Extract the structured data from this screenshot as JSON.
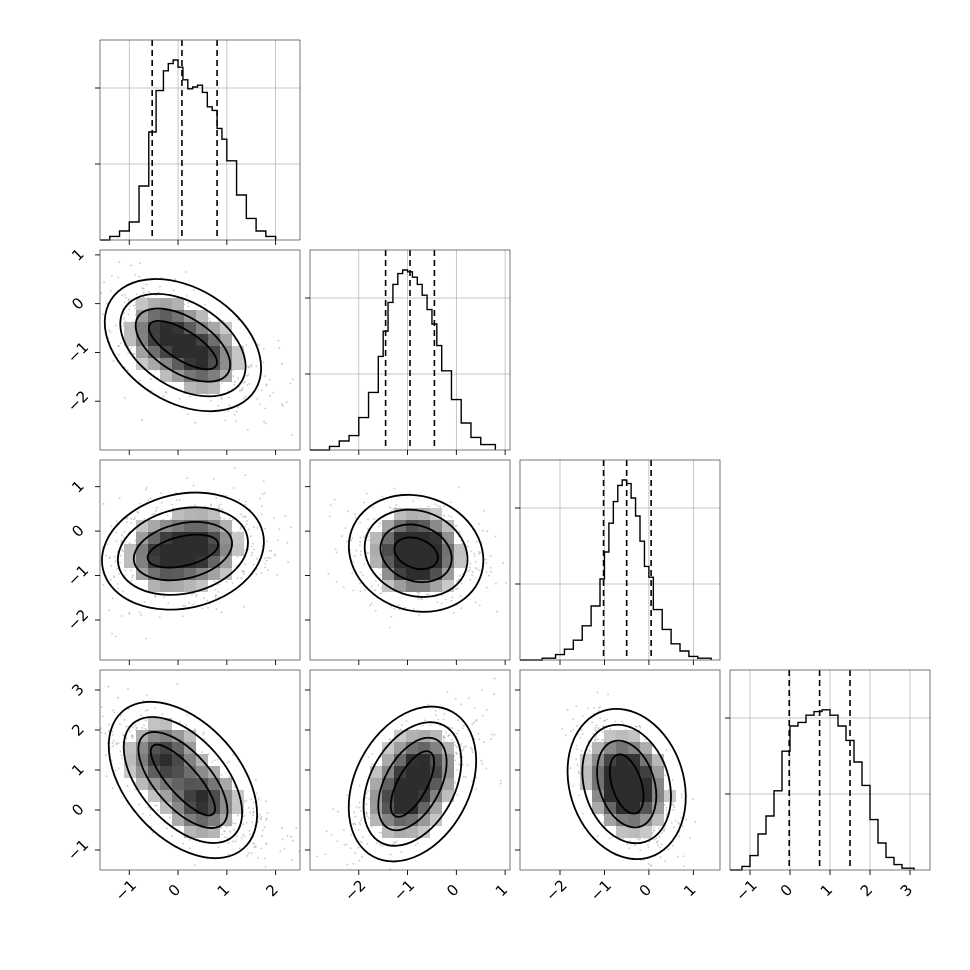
{
  "chart_data": {
    "type": "corner",
    "parameters": 4,
    "axis_ranges": [
      [
        -1.6,
        2.5
      ],
      [
        -3.0,
        1.1
      ],
      [
        -2.9,
        1.6
      ],
      [
        -1.5,
        3.5
      ]
    ],
    "ticks": [
      [
        -1,
        0,
        1,
        2
      ],
      [
        -2,
        -1,
        0,
        1
      ],
      [
        -2,
        -1,
        0,
        1
      ],
      [
        -1,
        0,
        1,
        2,
        3
      ]
    ],
    "tick_labels": {
      "x": [
        [
          "−1",
          "0",
          "1",
          "2"
        ],
        [
          "−2",
          "−1",
          "0",
          "1"
        ],
        [
          "−2",
          "−1",
          "0",
          "1"
        ],
        [
          "−1",
          "0",
          "1",
          "2",
          "3"
        ]
      ],
      "y": [
        null,
        [
          "−2",
          "−1",
          "0",
          "1"
        ],
        [
          "−2",
          "−1",
          "0",
          "1"
        ],
        [
          "−1",
          "0",
          "1",
          "2",
          "3"
        ]
      ]
    },
    "quantiles": [
      [
        -0.53,
        0.08,
        0.8
      ],
      [
        -1.45,
        -0.95,
        -0.45
      ],
      [
        -1.02,
        -0.5,
        0.05
      ],
      [
        -0.02,
        0.74,
        1.5
      ]
    ],
    "histograms": [
      {
        "x": [
          -1.6,
          -1.4,
          -1.2,
          -1.0,
          -0.8,
          -0.6,
          -0.45,
          -0.3,
          -0.2,
          -0.1,
          0.0,
          0.1,
          0.2,
          0.3,
          0.4,
          0.5,
          0.6,
          0.7,
          0.8,
          0.9,
          1.0,
          1.2,
          1.4,
          1.6,
          1.8,
          2.0
        ],
        "y": [
          0.0,
          0.02,
          0.05,
          0.1,
          0.3,
          0.6,
          0.83,
          0.94,
          0.98,
          1.0,
          0.96,
          0.89,
          0.84,
          0.85,
          0.86,
          0.82,
          0.74,
          0.72,
          0.62,
          0.56,
          0.44,
          0.25,
          0.12,
          0.05,
          0.02,
          0.0
        ]
      },
      {
        "x": [
          -3.0,
          -2.6,
          -2.4,
          -2.2,
          -2.0,
          -1.8,
          -1.6,
          -1.5,
          -1.4,
          -1.3,
          -1.2,
          -1.1,
          -1.0,
          -0.9,
          -0.8,
          -0.7,
          -0.6,
          -0.5,
          -0.4,
          -0.3,
          -0.1,
          0.1,
          0.3,
          0.5,
          0.8
        ],
        "y": [
          0.0,
          0.02,
          0.05,
          0.08,
          0.18,
          0.32,
          0.52,
          0.66,
          0.82,
          0.92,
          0.98,
          1.0,
          0.99,
          0.96,
          0.92,
          0.86,
          0.78,
          0.7,
          0.58,
          0.44,
          0.28,
          0.15,
          0.07,
          0.03,
          0.0
        ]
      },
      {
        "x": [
          -2.9,
          -2.4,
          -2.1,
          -1.9,
          -1.7,
          -1.5,
          -1.3,
          -1.1,
          -1.0,
          -0.9,
          -0.8,
          -0.7,
          -0.6,
          -0.5,
          -0.4,
          -0.3,
          -0.2,
          -0.1,
          0.0,
          0.1,
          0.3,
          0.5,
          0.7,
          0.9,
          1.1,
          1.4
        ],
        "y": [
          0.0,
          0.01,
          0.03,
          0.06,
          0.11,
          0.19,
          0.3,
          0.45,
          0.6,
          0.76,
          0.88,
          0.97,
          1.0,
          0.98,
          0.9,
          0.8,
          0.66,
          0.52,
          0.46,
          0.28,
          0.17,
          0.09,
          0.05,
          0.02,
          0.01,
          0.0
        ]
      },
      {
        "x": [
          -1.5,
          -1.2,
          -1.0,
          -0.8,
          -0.6,
          -0.4,
          -0.2,
          0.0,
          0.2,
          0.4,
          0.6,
          0.8,
          1.0,
          1.2,
          1.4,
          1.6,
          1.8,
          2.0,
          2.2,
          2.4,
          2.6,
          2.8,
          3.1
        ],
        "y": [
          0.0,
          0.02,
          0.08,
          0.2,
          0.3,
          0.44,
          0.66,
          0.8,
          0.82,
          0.86,
          0.88,
          0.89,
          0.86,
          0.8,
          0.72,
          0.6,
          0.47,
          0.28,
          0.15,
          0.07,
          0.03,
          0.01,
          0.0
        ]
      }
    ],
    "pairs": [
      {
        "row": 1,
        "col": 0,
        "peaks": [
          [
            -0.3,
            -0.6
          ],
          [
            0.5,
            -1.1
          ]
        ],
        "spread": [
          0.55,
          0.42
        ],
        "correlation": -0.55
      },
      {
        "row": 2,
        "col": 0,
        "peaks": [
          [
            -0.3,
            -0.55
          ],
          [
            0.5,
            -0.35
          ]
        ],
        "spread": [
          0.55,
          0.42
        ],
        "correlation": 0.15
      },
      {
        "row": 2,
        "col": 1,
        "peaks": [
          [
            -0.95,
            -0.45
          ],
          [
            -0.7,
            -0.55
          ]
        ],
        "spread": [
          0.45,
          0.4
        ],
        "correlation": -0.1
      },
      {
        "row": 3,
        "col": 0,
        "peaks": [
          [
            -0.3,
            1.3
          ],
          [
            0.5,
            0.2
          ]
        ],
        "spread": [
          0.55,
          0.5
        ],
        "correlation": -0.6
      },
      {
        "row": 3,
        "col": 1,
        "peaks": [
          [
            -1.1,
            0.2
          ],
          [
            -0.7,
            1.1
          ]
        ],
        "spread": [
          0.45,
          0.5
        ],
        "correlation": 0.65
      },
      {
        "row": 3,
        "col": 2,
        "peaks": [
          [
            -0.6,
            1.0
          ],
          [
            -0.4,
            0.3
          ]
        ],
        "spread": [
          0.4,
          0.5
        ],
        "correlation": -0.5
      }
    ],
    "grid": true,
    "colors": {
      "ink": "#000000",
      "grid": "#b0b0b0",
      "points": "#9a9a9a"
    }
  }
}
